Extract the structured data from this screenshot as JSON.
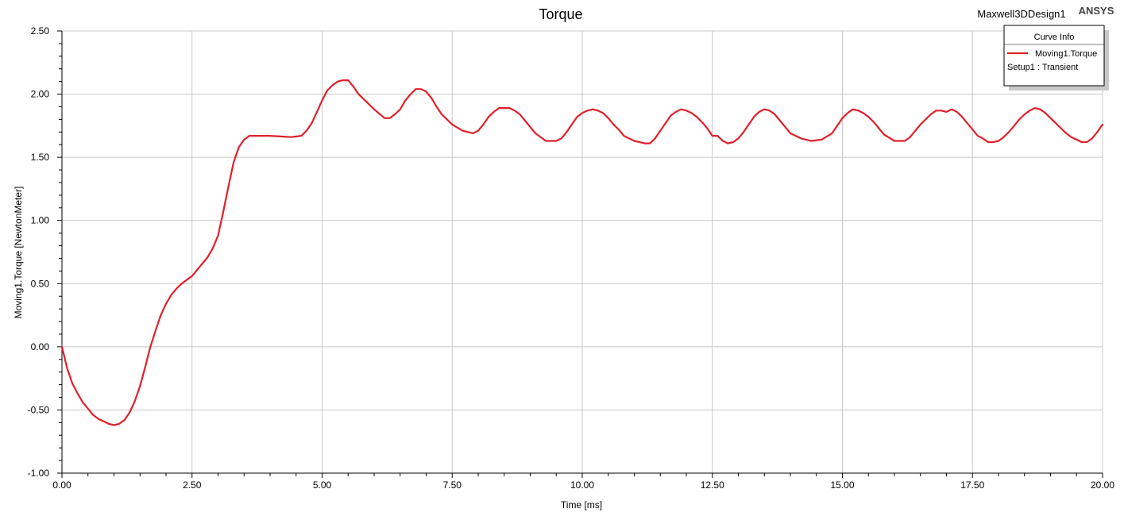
{
  "header": {
    "design_name": "Maxwell3DDesign1",
    "brand": "ANSYS"
  },
  "legend": {
    "title": "Curve Info",
    "placement": "top-right"
  },
  "colors": {
    "series": "#e0202a",
    "grid": "#c8c8c8",
    "axis": "#000000"
  },
  "chart_data": {
    "type": "line",
    "title": "Torque",
    "xlabel": "Time [ms]",
    "ylabel": "Moving1.Torque [NewtonMeter]",
    "xlim": [
      0,
      20
    ],
    "ylim": [
      -1.0,
      2.5
    ],
    "grid": true,
    "x_ticks": [
      "0.00",
      "2.50",
      "5.00",
      "7.50",
      "10.00",
      "12.50",
      "15.00",
      "17.50",
      "20.00"
    ],
    "y_ticks": [
      "-1.00",
      "-0.50",
      "0.00",
      "0.50",
      "1.00",
      "1.50",
      "2.00",
      "2.50"
    ],
    "series": [
      {
        "name": "Moving1.Torque",
        "subtitle": "Setup1 : Transient",
        "x": [
          0,
          0.1,
          0.2,
          0.3,
          0.4,
          0.5,
          0.6,
          0.7,
          0.8,
          0.9,
          1.0,
          1.1,
          1.2,
          1.3,
          1.4,
          1.5,
          1.6,
          1.7,
          1.8,
          1.9,
          2.0,
          2.1,
          2.2,
          2.3,
          2.4,
          2.5,
          2.6,
          2.7,
          2.8,
          2.9,
          3.0,
          3.1,
          3.2,
          3.3,
          3.4,
          3.5,
          3.6,
          3.7,
          3.8,
          3.9,
          4.0,
          4.2,
          4.4,
          4.6,
          4.7,
          4.8,
          4.9,
          5.0,
          5.1,
          5.2,
          5.3,
          5.4,
          5.5,
          5.6,
          5.7,
          5.8,
          6.0,
          6.2,
          6.3,
          6.4,
          6.5,
          6.6,
          6.7,
          6.8,
          6.9,
          7.0,
          7.1,
          7.2,
          7.3,
          7.5,
          7.7,
          7.9,
          8.0,
          8.1,
          8.2,
          8.3,
          8.4,
          8.6,
          8.7,
          8.8,
          8.9,
          9.1,
          9.3,
          9.5,
          9.6,
          9.7,
          9.8,
          9.9,
          10.0,
          10.1,
          10.2,
          10.3,
          10.4,
          10.5,
          10.6,
          10.7,
          10.8,
          11.0,
          11.2,
          11.3,
          11.4,
          11.5,
          11.6,
          11.7,
          11.8,
          11.9,
          12.0,
          12.1,
          12.2,
          12.3,
          12.4,
          12.5,
          12.6,
          12.7,
          12.8,
          12.9,
          13.0,
          13.1,
          13.2,
          13.3,
          13.4,
          13.5,
          13.6,
          13.7,
          13.8,
          13.9,
          14.0,
          14.2,
          14.4,
          14.6,
          14.8,
          14.9,
          15.0,
          15.1,
          15.2,
          15.3,
          15.4,
          15.5,
          15.6,
          15.7,
          15.8,
          16.0,
          16.2,
          16.3,
          16.4,
          16.5,
          16.6,
          16.7,
          16.8,
          16.9,
          17.0,
          17.1,
          17.2,
          17.3,
          17.4,
          17.5,
          17.6,
          17.7,
          17.8,
          17.9,
          18.0,
          18.1,
          18.2,
          18.3,
          18.4,
          18.5,
          18.6,
          18.7,
          18.8,
          18.9,
          19.0,
          19.1,
          19.2,
          19.3,
          19.4,
          19.5,
          19.6,
          19.7,
          19.8,
          19.9,
          20.0
        ],
        "y": [
          0.0,
          -0.17,
          -0.29,
          -0.37,
          -0.44,
          -0.49,
          -0.54,
          -0.57,
          -0.59,
          -0.61,
          -0.62,
          -0.61,
          -0.58,
          -0.52,
          -0.43,
          -0.31,
          -0.16,
          0.0,
          0.13,
          0.25,
          0.34,
          0.41,
          0.46,
          0.5,
          0.53,
          0.56,
          0.61,
          0.66,
          0.71,
          0.78,
          0.88,
          1.07,
          1.27,
          1.46,
          1.58,
          1.64,
          1.67,
          1.67,
          1.67,
          1.67,
          1.67,
          1.665,
          1.66,
          1.67,
          1.71,
          1.77,
          1.86,
          1.95,
          2.03,
          2.07,
          2.1,
          2.11,
          2.11,
          2.06,
          2.0,
          1.96,
          1.88,
          1.81,
          1.81,
          1.84,
          1.88,
          1.95,
          2.0,
          2.04,
          2.04,
          2.02,
          1.97,
          1.9,
          1.84,
          1.76,
          1.71,
          1.69,
          1.71,
          1.76,
          1.82,
          1.86,
          1.89,
          1.89,
          1.87,
          1.84,
          1.79,
          1.69,
          1.63,
          1.63,
          1.65,
          1.7,
          1.76,
          1.82,
          1.85,
          1.87,
          1.88,
          1.87,
          1.85,
          1.81,
          1.76,
          1.72,
          1.67,
          1.63,
          1.61,
          1.61,
          1.65,
          1.71,
          1.77,
          1.83,
          1.86,
          1.88,
          1.87,
          1.85,
          1.82,
          1.78,
          1.73,
          1.67,
          1.67,
          1.63,
          1.61,
          1.62,
          1.65,
          1.7,
          1.76,
          1.82,
          1.86,
          1.88,
          1.87,
          1.84,
          1.79,
          1.74,
          1.69,
          1.65,
          1.63,
          1.64,
          1.69,
          1.75,
          1.81,
          1.85,
          1.88,
          1.87,
          1.85,
          1.82,
          1.78,
          1.73,
          1.68,
          1.63,
          1.63,
          1.66,
          1.71,
          1.76,
          1.8,
          1.84,
          1.87,
          1.87,
          1.86,
          1.88,
          1.86,
          1.82,
          1.77,
          1.72,
          1.67,
          1.65,
          1.62,
          1.62,
          1.63,
          1.66,
          1.7,
          1.75,
          1.8,
          1.84,
          1.87,
          1.89,
          1.88,
          1.85,
          1.81,
          1.77,
          1.73,
          1.69,
          1.66,
          1.64,
          1.62,
          1.62,
          1.65,
          1.7,
          1.76
        ]
      }
    ]
  }
}
